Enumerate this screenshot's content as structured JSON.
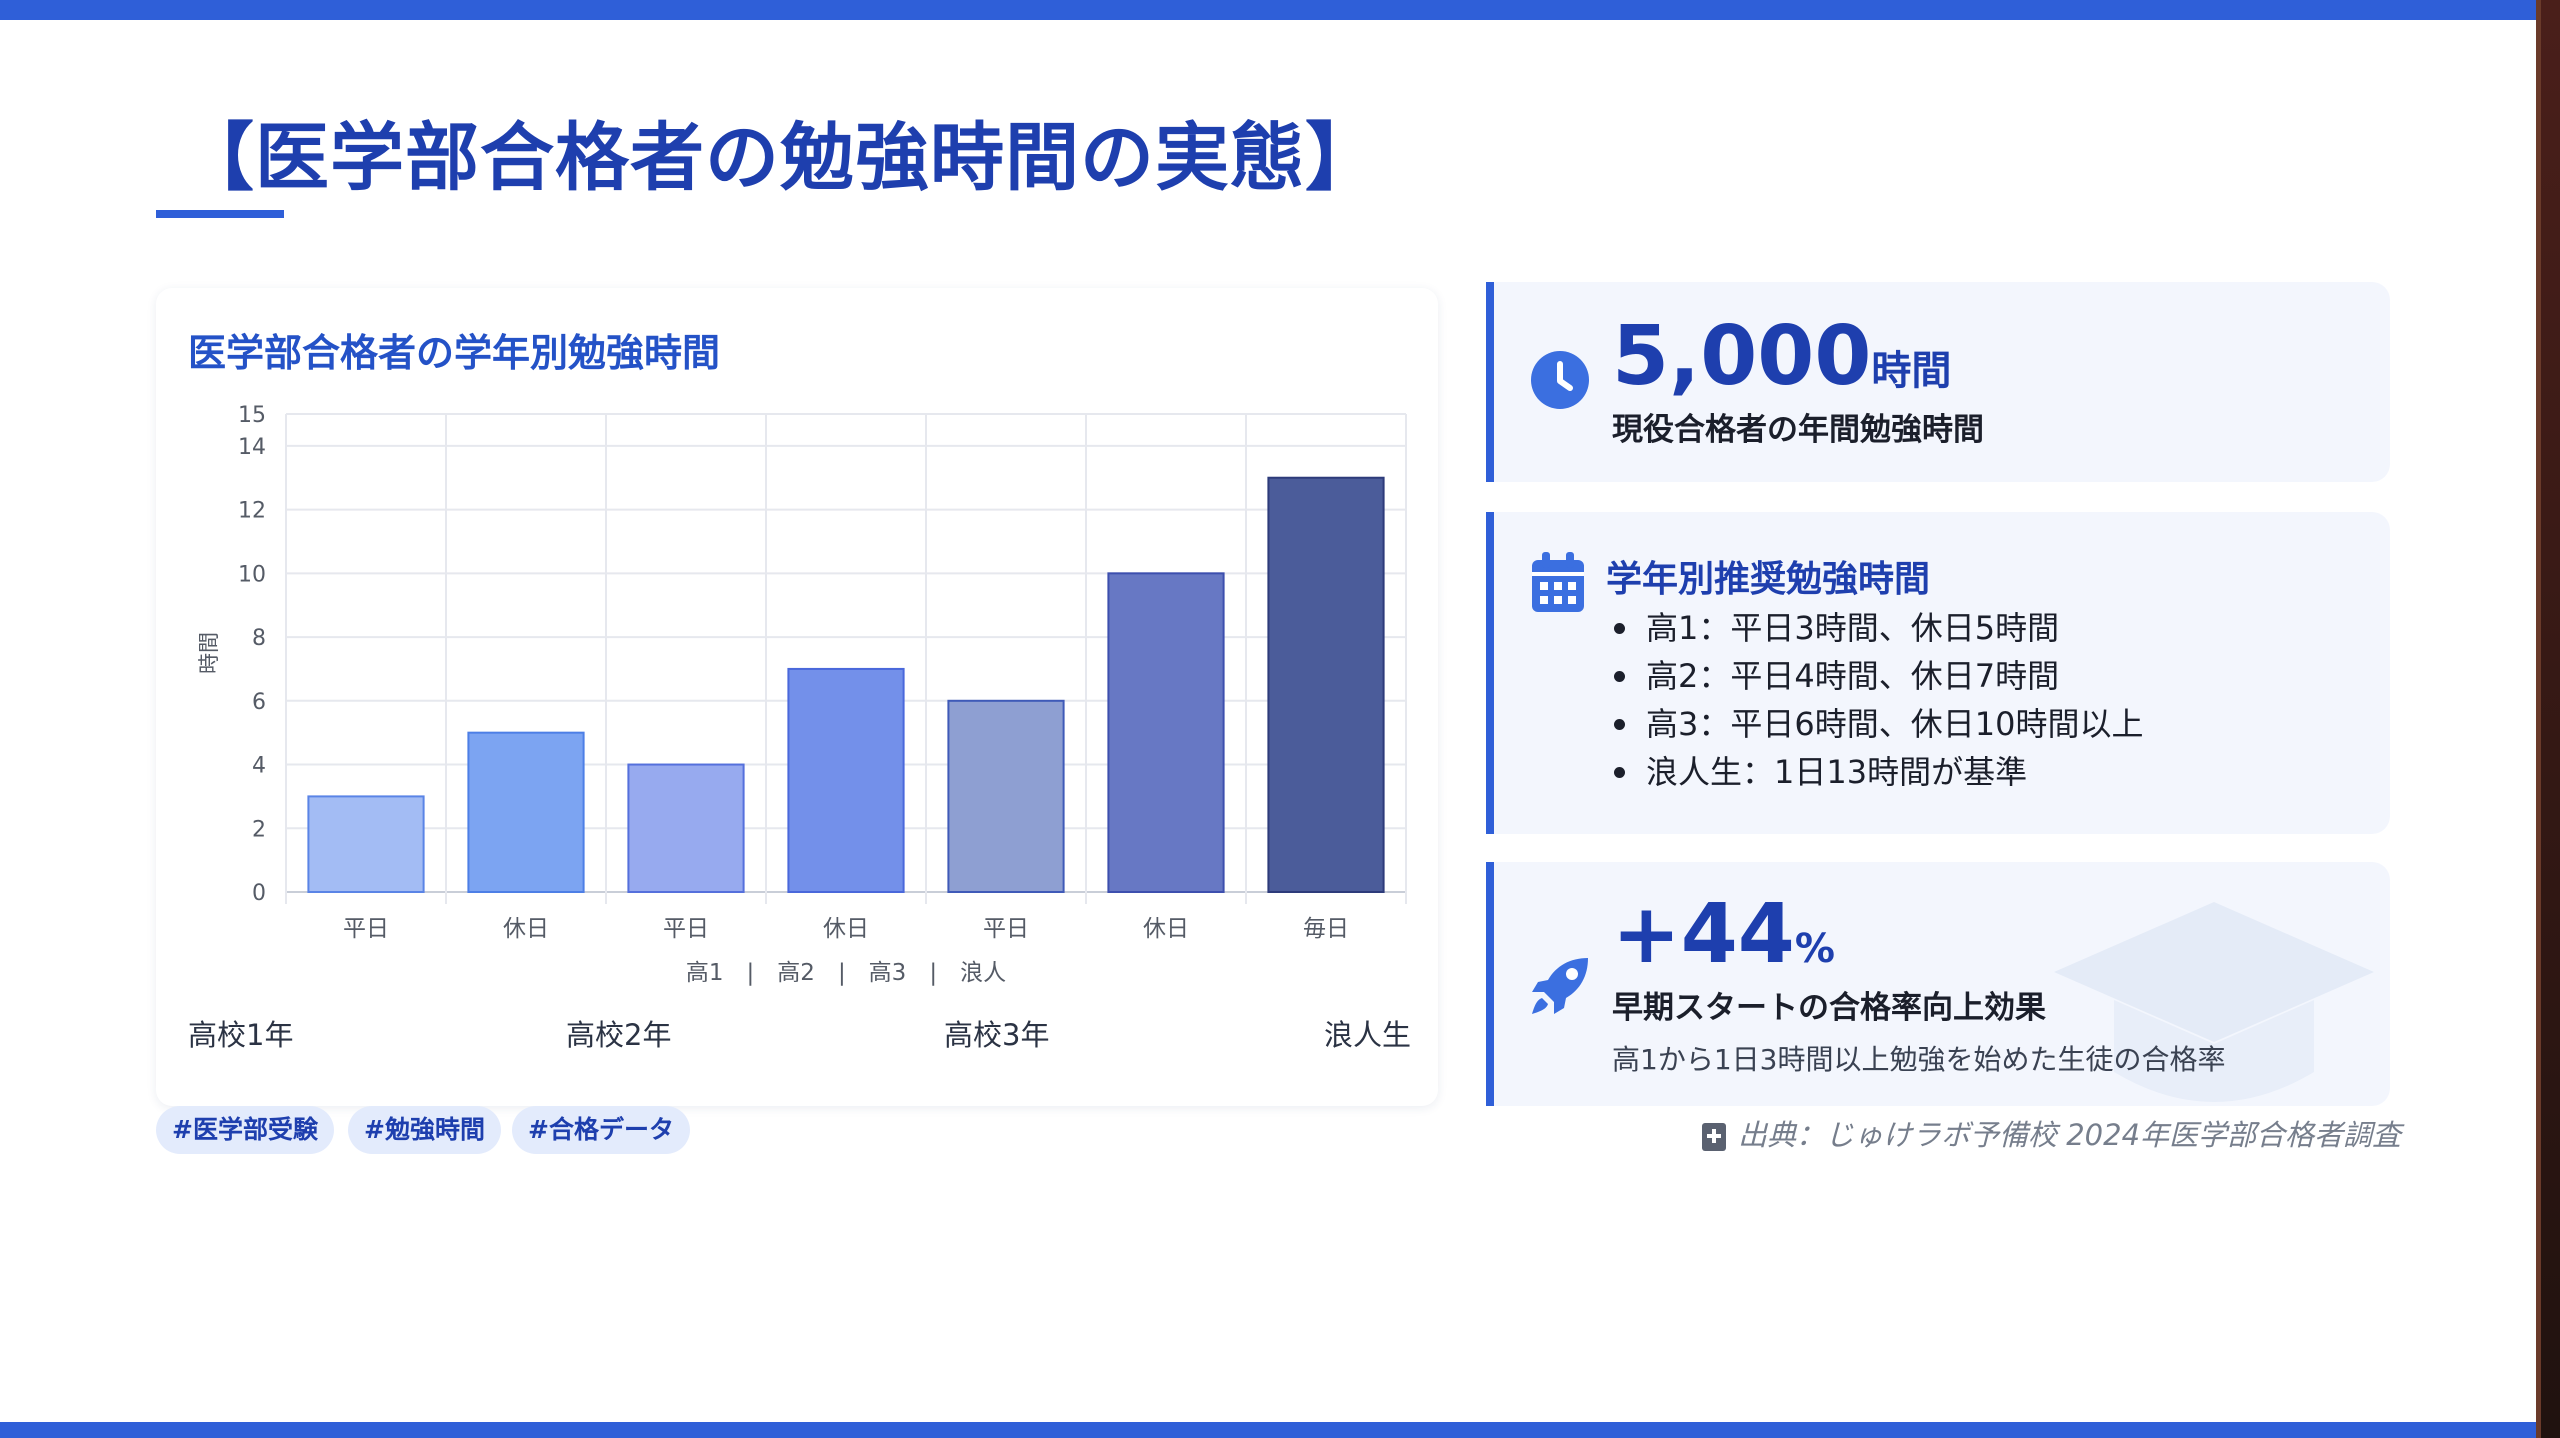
{
  "title": "【医学部合格者の勉強時間の実態】",
  "chart_card": {
    "title": "医学部合格者の学年別勉強時間"
  },
  "chart_data": {
    "type": "bar",
    "title": "医学部合格者の学年別勉強時間",
    "categories": [
      "平日",
      "休日",
      "平日",
      "休日",
      "平日",
      "休日",
      "毎日"
    ],
    "values": [
      3,
      5,
      4,
      7,
      6,
      10,
      13
    ],
    "bar_colors": [
      "#a3bcf4",
      "#7ca4f2",
      "#97aaef",
      "#7390ea",
      "#8e9fd2",
      "#6778c4",
      "#4b5c9a"
    ],
    "bar_borders": [
      "#5a84e6",
      "#4d7fe6",
      "#5570dc",
      "#4a68db",
      "#3f5ab8",
      "#3d4fae",
      "#2d3b7a"
    ],
    "ylabel": "時間",
    "xlabel": "高1　|　高2　|　高3　|　浪人",
    "ylim": [
      0,
      15
    ],
    "yticks": [
      0,
      2,
      4,
      6,
      8,
      10,
      12,
      14,
      15
    ],
    "grid": true,
    "legend": "none",
    "group_labels": [
      "高校1年",
      "高校2年",
      "高校3年",
      "浪人生"
    ]
  },
  "tags": [
    "#医学部受験",
    "#勉強時間",
    "#合格データ"
  ],
  "stat_card": {
    "icon": "clock-icon",
    "value": "5,000",
    "unit": "時間",
    "label": "現役合格者の年間勉強時間"
  },
  "recommend_card": {
    "icon": "calendar-icon",
    "title": "学年別推奨勉強時間",
    "items": [
      "高1：平日3時間、休日5時間",
      "高2：平日4時間、休日7時間",
      "高3：平日6時間、休日10時間以上",
      "浪人生：1日13時間が基準"
    ]
  },
  "effect_card": {
    "icon": "rocket-icon",
    "value": "+44",
    "unit": "%",
    "label": "早期スタートの合格率向上効果",
    "description": "高1から1日3時間以上勉強を始めた生徒の合格率"
  },
  "source": {
    "icon": "book-plus-icon",
    "text": "出典：じゅけラボ予備校 2024年医学部合格者調査"
  },
  "colors": {
    "accent": "#2f5fd8",
    "title": "#1e3fae",
    "card_bg": "#f3f6fd"
  }
}
